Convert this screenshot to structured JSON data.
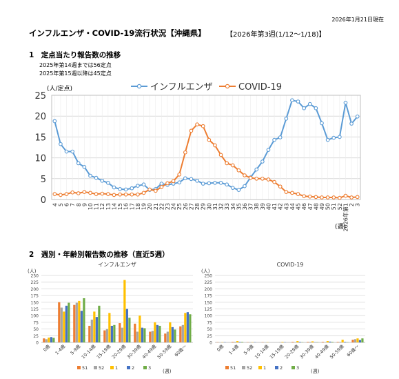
{
  "header": {
    "as_of": "2026年1月21日現在",
    "title": "インフルエンザ・COVID-19流行状況【沖縄県】",
    "period": "【2026年第3週(1/12～1/18)】"
  },
  "section1": {
    "heading": "1　定点当たり報告数の推移",
    "note1": "2025年第14週までは56定点",
    "note2": "2025年第15週以降は45定点"
  },
  "section2": {
    "heading": "2　週別・年齢別報告数の推移（直近5週）"
  },
  "colors": {
    "influenza": "#5b9bd5",
    "covid": "#ed7d31",
    "wk51": "#ed7d31",
    "wk52": "#a5a5a5",
    "wk1": "#ffc000",
    "wk2": "#4472c4",
    "wk3": "#70ad47"
  },
  "chart_data": [
    {
      "type": "line",
      "ylabel": "(人/定点)",
      "xlabel": "(週)",
      "ylim": [
        0,
        25
      ],
      "yticks": [
        0,
        5,
        10,
        15,
        20,
        25
      ],
      "grid": true,
      "legend": "top-center",
      "x": [
        "4",
        "5",
        "6",
        "7",
        "8",
        "9",
        "10",
        "11",
        "12",
        "13",
        "14",
        "15",
        "16",
        "17",
        "18",
        "19",
        "20",
        "21",
        "22",
        "23",
        "24",
        "25",
        "26",
        "27",
        "28",
        "29",
        "30",
        "31",
        "32",
        "33",
        "34",
        "35",
        "36",
        "37",
        "38",
        "39",
        "40",
        "41",
        "42",
        "43",
        "44",
        "45",
        "46",
        "47",
        "48",
        "49",
        "50",
        "51",
        "52",
        "2026年第1",
        "2",
        "3"
      ],
      "series": [
        {
          "name": "インフルエンザ",
          "values": [
            18.8,
            13.3,
            11.5,
            11.5,
            8.7,
            7.8,
            5.7,
            5.2,
            4.5,
            4.0,
            2.9,
            2.5,
            2.4,
            2.7,
            3.3,
            3.6,
            2.3,
            2.5,
            3.8,
            3.5,
            3.8,
            4.1,
            5.1,
            4.9,
            4.5,
            3.8,
            3.9,
            4.0,
            4.0,
            3.6,
            2.8,
            2.3,
            3.2,
            5.3,
            7.2,
            9.1,
            11.9,
            14.3,
            14.9,
            19.4,
            23.8,
            23.5,
            21.9,
            22.9,
            21.9,
            18.3,
            14.3,
            14.8,
            15.0,
            23.2,
            18.2,
            19.9
          ]
        },
        {
          "name": "COVID-19",
          "values": [
            1.3,
            1.1,
            1.3,
            1.7,
            1.5,
            1.8,
            1.6,
            1.3,
            1.4,
            1.3,
            1.1,
            1.2,
            1.2,
            1.2,
            1.2,
            1.6,
            2.4,
            2.1,
            3.0,
            3.9,
            4.4,
            6.0,
            11.3,
            16.5,
            18.0,
            17.6,
            14.3,
            13.0,
            10.7,
            8.7,
            8.2,
            7.0,
            5.8,
            5.2,
            5.0,
            5.0,
            4.8,
            4.2,
            3.1,
            1.8,
            1.6,
            1.3,
            0.8,
            0.7,
            0.6,
            0.5,
            0.5,
            0.5,
            0.4,
            0.9,
            0.5,
            0.6
          ]
        }
      ]
    },
    {
      "type": "bar",
      "title": "インフルエンザ",
      "ylabel": "(人)",
      "xlabel": "(週)",
      "ylim": [
        0,
        250
      ],
      "yticks": [
        0,
        25,
        50,
        75,
        100,
        125,
        150,
        175,
        200,
        225,
        250
      ],
      "grid": true,
      "legend": "bottom",
      "categories": [
        "0歳",
        "1-4歳",
        "5-9歳",
        "10-14歳",
        "15-19歳",
        "20-29歳",
        "30-39歳",
        "40-49歳",
        "50-59歳",
        "60歳～"
      ],
      "series": [
        {
          "name": "51",
          "values": [
            15,
            150,
            140,
            62,
            45,
            72,
            70,
            40,
            33,
            60
          ]
        },
        {
          "name": "52",
          "values": [
            12,
            130,
            148,
            85,
            50,
            55,
            40,
            43,
            40,
            65
          ]
        },
        {
          "name": "1",
          "values": [
            18,
            115,
            155,
            115,
            110,
            233,
            100,
            75,
            75,
            110
          ]
        },
        {
          "name": "2",
          "values": [
            20,
            137,
            118,
            95,
            62,
            125,
            55,
            65,
            57,
            113
          ]
        },
        {
          "name": "3",
          "values": [
            17,
            148,
            165,
            137,
            65,
            92,
            53,
            62,
            48,
            105
          ]
        }
      ]
    },
    {
      "type": "bar",
      "title": "COVID-19",
      "ylabel": "(人)",
      "xlabel": "(週)",
      "ylim": [
        0,
        250
      ],
      "yticks": [
        0,
        25,
        50,
        75,
        100,
        125,
        150,
        175,
        200,
        225,
        250
      ],
      "grid": true,
      "legend": "bottom",
      "categories": [
        "0歳",
        "1-4歳",
        "5-9歳",
        "10-14歳",
        "15-19歳",
        "20-29歳",
        "30-39歳",
        "40-49歳",
        "50-59歳",
        "60歳～"
      ],
      "series": [
        {
          "name": "51",
          "values": [
            1,
            2,
            1,
            1,
            0,
            2,
            2,
            2,
            2,
            10
          ]
        },
        {
          "name": "52",
          "values": [
            0,
            2,
            1,
            0,
            1,
            1,
            2,
            1,
            2,
            12
          ]
        },
        {
          "name": "1",
          "values": [
            1,
            5,
            1,
            1,
            2,
            5,
            4,
            5,
            10,
            15
          ]
        },
        {
          "name": "2",
          "values": [
            1,
            2,
            1,
            0,
            1,
            2,
            1,
            3,
            2,
            9
          ]
        },
        {
          "name": "3",
          "values": [
            0,
            2,
            0,
            0,
            0,
            1,
            1,
            2,
            1,
            15
          ]
        }
      ]
    }
  ]
}
